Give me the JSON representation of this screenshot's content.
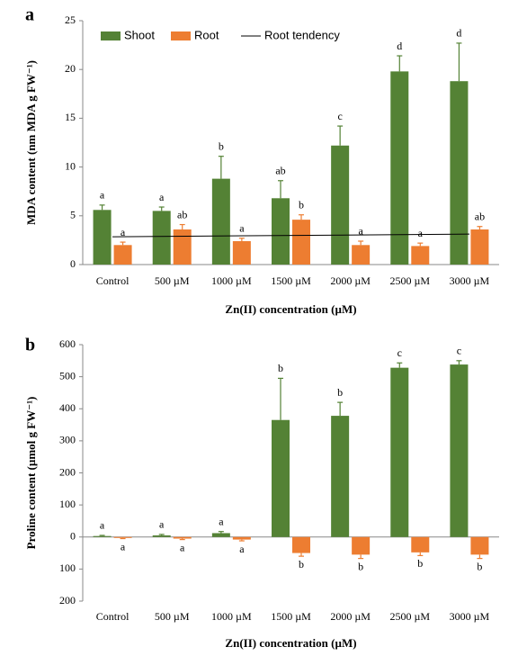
{
  "chart_data": [
    {
      "type": "bar",
      "panel_label": "a",
      "ylabel": "MDA content (nm MDA g FW⁻¹)",
      "xlabel": "Zn(II) concentration (µM)",
      "categories": [
        "Control",
        "500 µM",
        "1000 µM",
        "1500 µM",
        "2000 µM",
        "2500 µM",
        "3000 µM"
      ],
      "series": [
        {
          "name": "Shoot",
          "color": "#548235",
          "values": [
            5.6,
            5.5,
            8.8,
            6.8,
            12.2,
            19.8,
            18.8
          ],
          "errors": [
            0.5,
            0.4,
            2.3,
            1.8,
            2.0,
            1.6,
            3.9
          ],
          "letters": [
            "a",
            "a",
            "b",
            "ab",
            "c",
            "d",
            "d"
          ]
        },
        {
          "name": "Root",
          "color": "#ed7d31",
          "values": [
            2.0,
            3.6,
            2.4,
            4.6,
            2.0,
            1.9,
            3.6
          ],
          "errors": [
            0.3,
            0.5,
            0.3,
            0.5,
            0.4,
            0.3,
            0.3
          ],
          "letters": [
            "a",
            "ab",
            "a",
            "b",
            "a",
            "a",
            "ab"
          ]
        }
      ],
      "trend": {
        "name": "Root tendency",
        "color": "#000000",
        "values": [
          2.85,
          3.12
        ]
      },
      "ylim": [
        0,
        25
      ],
      "yticks": [
        0,
        5,
        10,
        15,
        20,
        25
      ]
    },
    {
      "type": "bar",
      "panel_label": "b",
      "ylabel": "Proline content (µmol g FW⁻¹)",
      "xlabel": "Zn(II) concentration (µM)",
      "categories": [
        "Control",
        "500 µM",
        "1000 µM",
        "1500 µM",
        "2000 µM",
        "2500 µM",
        "3000 µM"
      ],
      "series": [
        {
          "name": "Shoot",
          "color": "#548235",
          "values": [
            3,
            5,
            12,
            365,
            378,
            528,
            538
          ],
          "errors": [
            2,
            3,
            5,
            130,
            42,
            15,
            12
          ],
          "letters": [
            "a",
            "a",
            "a",
            "b",
            "b",
            "c",
            "c"
          ]
        },
        {
          "name": "Root",
          "color": "#ed7d31",
          "values": [
            -3,
            -5,
            -8,
            -50,
            -55,
            -48,
            -55
          ],
          "errors": [
            2,
            3,
            4,
            10,
            12,
            10,
            12
          ],
          "letters": [
            "a",
            "a",
            "a",
            "b",
            "b",
            "b",
            "b"
          ]
        }
      ],
      "ylim": [
        -200,
        600
      ],
      "yticks": [
        {
          "value": -200,
          "label": "200"
        },
        {
          "value": -100,
          "label": "100"
        },
        0,
        100,
        200,
        300,
        400,
        500,
        600
      ]
    }
  ]
}
